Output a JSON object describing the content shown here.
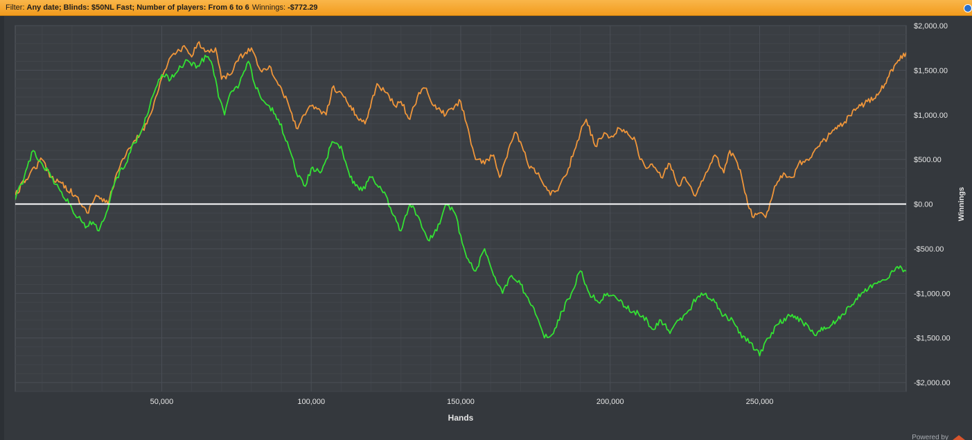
{
  "filter": {
    "prefix": "Filter:",
    "criteria": "Any date; Blinds: $50NL Fast; Number of players: From 6 to 6",
    "winnings_label": "Winnings:",
    "winnings_value": "-$772.29"
  },
  "footer": {
    "powered_by": "Powered by"
  },
  "colors": {
    "background": "#34383d",
    "plot_background": "#3a3e43",
    "grid": "#4a4f56",
    "axis_text": "#e6e6e6",
    "zero_line": "#ffffff",
    "filter_bar": "#f6a82d",
    "series_1": "#f0963a",
    "series_2": "#33e233"
  },
  "chart_data": {
    "type": "line",
    "xlabel": "Hands",
    "ylabel": "Winnings",
    "xlim": [
      1000,
      299000
    ],
    "ylim": [
      -2100,
      2000
    ],
    "x_ticks": [
      50000,
      100000,
      150000,
      200000,
      250000
    ],
    "x_tick_labels": [
      "50,000",
      "100,000",
      "150,000",
      "200,000",
      "250,000"
    ],
    "y_ticks": [
      2000,
      1500,
      1000,
      500,
      0,
      -500,
      -1000,
      -1500,
      -2000
    ],
    "y_tick_labels": [
      "$2,000.00",
      "$1,500.00",
      "$1,000.00",
      "$500.00",
      "$0.00",
      "-$500.00",
      "-$1,000.00",
      "-$1,500.00",
      "-$2,000.00"
    ],
    "grid": true,
    "reference_line": 0,
    "y_axis_side": "right",
    "series": [
      {
        "color": "#f0963a",
        "x": [
          1000,
          6000,
          10000,
          13000,
          16000,
          21000,
          23000,
          25000,
          28000,
          32000,
          35000,
          38000,
          40000,
          45000,
          48000,
          51000,
          53000,
          55000,
          58000,
          60000,
          62000,
          64000,
          66000,
          68000,
          70000,
          73000,
          75000,
          78000,
          80000,
          83000,
          86000,
          88000,
          90000,
          93000,
          95000,
          98000,
          100000,
          103000,
          105000,
          107000,
          110000,
          115000,
          118000,
          122000,
          125000,
          128000,
          130000,
          133000,
          136000,
          138000,
          141000,
          145000,
          148000,
          150000,
          152000,
          155000,
          158000,
          161000,
          163000,
          165000,
          168000,
          170000,
          173000,
          176000,
          178000,
          180000,
          183000,
          186000,
          188000,
          190000,
          192000,
          195000,
          198000,
          200000,
          203000,
          205000,
          208000,
          210000,
          212000,
          214000,
          217000,
          220000,
          223000,
          225000,
          228000,
          230000,
          233000,
          235000,
          238000,
          240000,
          242000,
          244000,
          246000,
          248000,
          250000,
          252000,
          255000,
          258000,
          261000,
          263000,
          266000,
          270000,
          274000,
          278000,
          282000,
          286000,
          290000,
          295000,
          299000
        ],
        "y": [
          100,
          350,
          500,
          300,
          250,
          100,
          0,
          -100,
          100,
          0,
          350,
          550,
          650,
          900,
          1200,
          1500,
          1650,
          1700,
          1750,
          1650,
          1800,
          1750,
          1700,
          1750,
          1400,
          1450,
          1600,
          1700,
          1750,
          1500,
          1550,
          1400,
          1300,
          1050,
          850,
          1000,
          1100,
          1050,
          1000,
          1300,
          1250,
          1000,
          900,
          1350,
          1250,
          1100,
          1150,
          950,
          1250,
          1300,
          1100,
          1000,
          1100,
          1150,
          900,
          500,
          450,
          550,
          300,
          500,
          800,
          700,
          400,
          350,
          200,
          100,
          200,
          400,
          600,
          800,
          950,
          650,
          800,
          750,
          850,
          800,
          750,
          500,
          400,
          450,
          300,
          450,
          200,
          300,
          100,
          200,
          400,
          550,
          350,
          600,
          500,
          300,
          0,
          -150,
          -100,
          -150,
          200,
          350,
          300,
          450,
          500,
          650,
          800,
          900,
          1050,
          1150,
          1250,
          1550,
          1700
        ]
      },
      {
        "color": "#33e233",
        "x": [
          1000,
          4000,
          7000,
          10000,
          13000,
          16000,
          19000,
          22000,
          25000,
          27000,
          29000,
          31000,
          33000,
          35000,
          38000,
          40000,
          43000,
          46000,
          48000,
          50000,
          53000,
          56000,
          59000,
          62000,
          65000,
          67000,
          69000,
          71000,
          73000,
          76000,
          79000,
          81000,
          83000,
          86000,
          89000,
          92000,
          95000,
          98000,
          100000,
          103000,
          105000,
          107000,
          110000,
          113000,
          117000,
          120000,
          123000,
          125000,
          127000,
          130000,
          133000,
          136000,
          139000,
          142000,
          145000,
          148000,
          150000,
          152000,
          155000,
          158000,
          161000,
          164000,
          167000,
          170000,
          173000,
          176000,
          178000,
          181000,
          184000,
          187000,
          190000,
          193000,
          196000,
          199000,
          202000,
          205000,
          208000,
          211000,
          214000,
          217000,
          220000,
          223000,
          226000,
          229000,
          232000,
          235000,
          238000,
          241000,
          244000,
          247000,
          250000,
          253000,
          256000,
          260000,
          264000,
          268000,
          272000,
          276000,
          280000,
          284000,
          288000,
          292000,
          296000,
          299000
        ],
        "y": [
          50,
          300,
          600,
          450,
          300,
          150,
          0,
          -150,
          -250,
          -200,
          -300,
          -150,
          100,
          300,
          450,
          650,
          800,
          1100,
          1300,
          1450,
          1400,
          1550,
          1600,
          1550,
          1650,
          1550,
          1200,
          1000,
          1250,
          1350,
          1600,
          1350,
          1200,
          1100,
          950,
          700,
          350,
          200,
          400,
          350,
          500,
          700,
          650,
          300,
          150,
          300,
          200,
          100,
          -100,
          -300,
          0,
          -150,
          -400,
          -300,
          0,
          -100,
          -350,
          -600,
          -750,
          -500,
          -800,
          -1000,
          -800,
          -900,
          -1100,
          -1300,
          -1500,
          -1450,
          -1200,
          -1000,
          -750,
          -1000,
          -1100,
          -1000,
          -1050,
          -1150,
          -1200,
          -1250,
          -1400,
          -1300,
          -1450,
          -1300,
          -1200,
          -1050,
          -1000,
          -1100,
          -1250,
          -1300,
          -1500,
          -1550,
          -1700,
          -1500,
          -1350,
          -1250,
          -1300,
          -1450,
          -1400,
          -1300,
          -1150,
          -1000,
          -900,
          -850,
          -700,
          -750
        ]
      }
    ]
  }
}
